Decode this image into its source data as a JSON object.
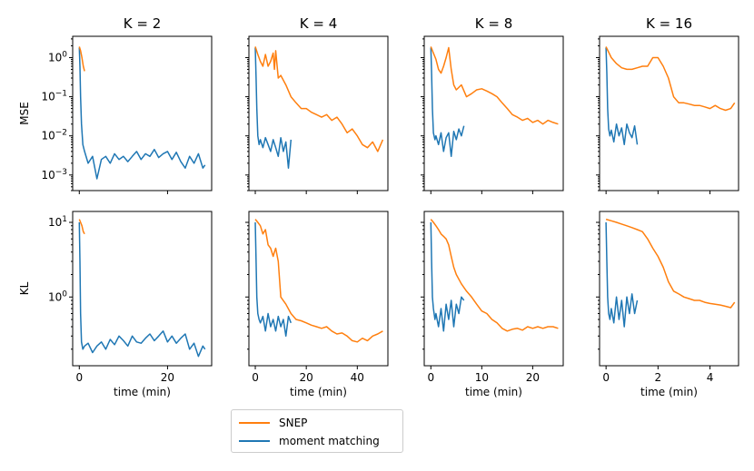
{
  "legend": {
    "snep_label": "SNEP",
    "mm_label": "moment matching",
    "snep_color": "#ff7f0e",
    "mm_color": "#1f77b4"
  },
  "chart_data": [
    {
      "type": "line",
      "title": "K = 2",
      "ylabel": "MSE",
      "xlabel": "",
      "yscale": "log",
      "ylim": [
        0.0004,
        3.5
      ],
      "xlim": [
        -1.5,
        30
      ],
      "yticks": [
        0.001,
        0.01,
        0.1,
        1
      ],
      "yticklabels": [
        "10^-3",
        "10^-2",
        "10^-1",
        "10^0"
      ],
      "xticks": [
        0,
        20
      ],
      "xticklabels": [],
      "series": [
        {
          "name": "SNEP",
          "color": "#ff7f0e",
          "x": [
            0,
            0.3,
            0.6,
            0.9,
            1.2
          ],
          "y": [
            1.9,
            1.5,
            1.0,
            0.6,
            0.45
          ]
        },
        {
          "name": "moment matching",
          "color": "#1f77b4",
          "x": [
            0,
            0.15,
            0.3,
            0.5,
            0.8,
            1.2,
            2,
            3,
            4,
            5,
            6,
            7,
            8,
            9,
            10,
            11,
            12,
            13,
            14,
            15,
            16,
            17,
            18,
            19,
            20,
            21,
            22,
            23,
            24,
            25,
            26,
            27,
            28,
            28.5
          ],
          "y": [
            1.8,
            0.6,
            0.1,
            0.02,
            0.006,
            0.004,
            0.002,
            0.003,
            0.0008,
            0.0025,
            0.003,
            0.002,
            0.0035,
            0.0025,
            0.003,
            0.0022,
            0.003,
            0.004,
            0.0025,
            0.0035,
            0.003,
            0.0045,
            0.0028,
            0.0035,
            0.004,
            0.0025,
            0.0038,
            0.0022,
            0.0015,
            0.003,
            0.002,
            0.0035,
            0.0015,
            0.0018
          ]
        }
      ]
    },
    {
      "type": "line",
      "title": "K = 4",
      "ylabel": "",
      "xlabel": "",
      "yscale": "log",
      "ylim": [
        0.0004,
        3.5
      ],
      "xlim": [
        -2.5,
        52
      ],
      "yticks": [
        0.001,
        0.01,
        0.1,
        1
      ],
      "yticklabels": [],
      "xticks": [
        0,
        20,
        40
      ],
      "xticklabels": [],
      "series": [
        {
          "name": "SNEP",
          "color": "#ff7f0e",
          "x": [
            0,
            1,
            2,
            3,
            4,
            5,
            6,
            7,
            7.5,
            8,
            9,
            10,
            12,
            14,
            16,
            18,
            20,
            22,
            24,
            26,
            28,
            30,
            32,
            34,
            36,
            38,
            40,
            42,
            44,
            46,
            48,
            50
          ],
          "y": [
            1.9,
            1.2,
            0.8,
            0.6,
            1.2,
            0.6,
            0.8,
            1.3,
            0.5,
            1.5,
            0.3,
            0.35,
            0.2,
            0.1,
            0.07,
            0.05,
            0.05,
            0.04,
            0.035,
            0.03,
            0.035,
            0.025,
            0.03,
            0.02,
            0.012,
            0.015,
            0.01,
            0.006,
            0.005,
            0.007,
            0.004,
            0.008
          ]
        },
        {
          "name": "moment matching",
          "color": "#1f77b4",
          "x": [
            0,
            0.3,
            0.6,
            1,
            1.5,
            2,
            3,
            4,
            5,
            6,
            7,
            8,
            9,
            10,
            11,
            12,
            13,
            14
          ],
          "y": [
            1.8,
            0.3,
            0.05,
            0.01,
            0.006,
            0.008,
            0.005,
            0.009,
            0.006,
            0.004,
            0.008,
            0.005,
            0.003,
            0.009,
            0.004,
            0.007,
            0.0015,
            0.008
          ]
        }
      ]
    },
    {
      "type": "line",
      "title": "K = 8",
      "ylabel": "",
      "xlabel": "",
      "yscale": "log",
      "ylim": [
        0.0004,
        3.5
      ],
      "xlim": [
        -1.3,
        26
      ],
      "yticks": [
        0.001,
        0.01,
        0.1,
        1
      ],
      "yticklabels": [],
      "xticks": [
        0,
        10,
        20
      ],
      "xticklabels": [],
      "series": [
        {
          "name": "SNEP",
          "color": "#ff7f0e",
          "x": [
            0,
            0.5,
            1,
            1.5,
            2,
            2.5,
            3,
            3.5,
            4,
            4.5,
            5,
            6,
            7,
            8,
            9,
            10,
            11,
            12,
            13,
            14,
            15,
            16,
            17,
            18,
            19,
            20,
            21,
            22,
            23,
            24,
            25
          ],
          "y": [
            1.9,
            1.3,
            0.9,
            0.5,
            0.4,
            0.6,
            1.0,
            1.8,
            0.5,
            0.2,
            0.15,
            0.2,
            0.1,
            0.12,
            0.15,
            0.16,
            0.14,
            0.12,
            0.1,
            0.07,
            0.05,
            0.035,
            0.03,
            0.025,
            0.028,
            0.022,
            0.025,
            0.02,
            0.025,
            0.022,
            0.02
          ]
        },
        {
          "name": "moment matching",
          "color": "#1f77b4",
          "x": [
            0,
            0.15,
            0.3,
            0.5,
            0.8,
            1,
            1.5,
            2,
            2.5,
            3,
            3.5,
            4,
            4.5,
            5,
            5.5,
            6,
            6.5
          ],
          "y": [
            1.8,
            0.4,
            0.05,
            0.012,
            0.008,
            0.01,
            0.006,
            0.012,
            0.004,
            0.009,
            0.012,
            0.003,
            0.013,
            0.008,
            0.015,
            0.01,
            0.018
          ]
        }
      ]
    },
    {
      "type": "line",
      "title": "K = 16",
      "ylabel": "",
      "xlabel": "",
      "yscale": "log",
      "ylim": [
        0.0004,
        3.5
      ],
      "xlim": [
        -0.25,
        5.1
      ],
      "yticks": [
        0.001,
        0.01,
        0.1,
        1
      ],
      "yticklabels": [],
      "xticks": [
        0,
        2,
        4
      ],
      "xticklabels": [],
      "series": [
        {
          "name": "SNEP",
          "color": "#ff7f0e",
          "x": [
            0,
            0.2,
            0.4,
            0.6,
            0.8,
            1.0,
            1.2,
            1.4,
            1.6,
            1.8,
            2.0,
            2.2,
            2.4,
            2.6,
            2.8,
            3.0,
            3.2,
            3.4,
            3.6,
            3.8,
            4.0,
            4.2,
            4.4,
            4.6,
            4.8,
            4.95
          ],
          "y": [
            1.9,
            1.0,
            0.7,
            0.55,
            0.5,
            0.5,
            0.55,
            0.6,
            0.6,
            1.0,
            1.0,
            0.6,
            0.3,
            0.1,
            0.07,
            0.07,
            0.065,
            0.06,
            0.06,
            0.055,
            0.05,
            0.06,
            0.05,
            0.045,
            0.05,
            0.07
          ]
        },
        {
          "name": "moment matching",
          "color": "#1f77b4",
          "x": [
            0,
            0.03,
            0.06,
            0.1,
            0.15,
            0.2,
            0.3,
            0.4,
            0.5,
            0.6,
            0.7,
            0.8,
            0.9,
            1.0,
            1.1,
            1.2
          ],
          "y": [
            1.8,
            0.4,
            0.05,
            0.015,
            0.01,
            0.014,
            0.007,
            0.02,
            0.01,
            0.016,
            0.006,
            0.02,
            0.012,
            0.009,
            0.018,
            0.006
          ]
        }
      ]
    },
    {
      "type": "line",
      "title": "",
      "ylabel": "KL",
      "xlabel": "time (min)",
      "yscale": "log",
      "ylim": [
        0.12,
        14
      ],
      "xlim": [
        -1.5,
        30
      ],
      "yticks": [
        1,
        10
      ],
      "yticklabels": [
        "10^0",
        "10^1"
      ],
      "xticks": [
        0,
        20
      ],
      "xticklabels": [
        "0",
        "20"
      ],
      "series": [
        {
          "name": "SNEP",
          "color": "#ff7f0e",
          "x": [
            0,
            0.3,
            0.6,
            0.9,
            1.2
          ],
          "y": [
            11,
            10,
            9,
            7.5,
            7
          ]
        },
        {
          "name": "moment matching",
          "color": "#1f77b4",
          "x": [
            0,
            0.15,
            0.3,
            0.5,
            0.8,
            1.2,
            2,
            3,
            4,
            5,
            6,
            7,
            8,
            9,
            10,
            11,
            12,
            13,
            14,
            15,
            16,
            17,
            18,
            19,
            20,
            21,
            22,
            23,
            24,
            25,
            26,
            27,
            28,
            28.5
          ],
          "y": [
            10,
            3,
            0.6,
            0.25,
            0.2,
            0.22,
            0.24,
            0.18,
            0.22,
            0.25,
            0.2,
            0.27,
            0.23,
            0.3,
            0.26,
            0.22,
            0.3,
            0.25,
            0.24,
            0.28,
            0.32,
            0.26,
            0.3,
            0.35,
            0.25,
            0.3,
            0.24,
            0.28,
            0.32,
            0.2,
            0.24,
            0.16,
            0.22,
            0.2
          ]
        }
      ]
    },
    {
      "type": "line",
      "title": "",
      "ylabel": "",
      "xlabel": "time (min)",
      "yscale": "log",
      "ylim": [
        0.12,
        14
      ],
      "xlim": [
        -2.5,
        52
      ],
      "yticks": [
        1,
        10
      ],
      "yticklabels": [],
      "xticks": [
        0,
        20,
        40
      ],
      "xticklabels": [
        "0",
        "20",
        "40"
      ],
      "series": [
        {
          "name": "SNEP",
          "color": "#ff7f0e",
          "x": [
            0,
            1,
            2,
            3,
            4,
            5,
            6,
            7,
            7.5,
            8,
            9,
            10,
            12,
            14,
            16,
            18,
            20,
            22,
            24,
            26,
            28,
            30,
            32,
            34,
            36,
            38,
            40,
            42,
            44,
            46,
            48,
            50
          ],
          "y": [
            11,
            10,
            9,
            7,
            8,
            5,
            4.5,
            3.5,
            4,
            4.5,
            3,
            1.0,
            0.8,
            0.6,
            0.5,
            0.48,
            0.45,
            0.42,
            0.4,
            0.38,
            0.4,
            0.35,
            0.32,
            0.33,
            0.3,
            0.26,
            0.25,
            0.28,
            0.26,
            0.3,
            0.32,
            0.35
          ]
        },
        {
          "name": "moment matching",
          "color": "#1f77b4",
          "x": [
            0,
            0.3,
            0.6,
            1,
            1.5,
            2,
            3,
            4,
            5,
            6,
            7,
            8,
            9,
            10,
            11,
            12,
            13,
            14
          ],
          "y": [
            10,
            3,
            1.0,
            0.6,
            0.5,
            0.45,
            0.55,
            0.35,
            0.6,
            0.4,
            0.5,
            0.35,
            0.55,
            0.4,
            0.5,
            0.3,
            0.55,
            0.45
          ]
        }
      ]
    },
    {
      "type": "line",
      "title": "",
      "ylabel": "",
      "xlabel": "time (min)",
      "yscale": "log",
      "ylim": [
        0.12,
        14
      ],
      "xlim": [
        -1.3,
        26
      ],
      "yticks": [
        1,
        10
      ],
      "yticklabels": [],
      "xticks": [
        0,
        10,
        20
      ],
      "xticklabels": [
        "0",
        "10",
        "20"
      ],
      "series": [
        {
          "name": "SNEP",
          "color": "#ff7f0e",
          "x": [
            0,
            0.5,
            1,
            1.5,
            2,
            2.5,
            3,
            3.5,
            4,
            4.5,
            5,
            6,
            7,
            8,
            9,
            10,
            11,
            12,
            13,
            14,
            15,
            16,
            17,
            18,
            19,
            20,
            21,
            22,
            23,
            24,
            25
          ],
          "y": [
            11,
            10,
            9,
            8,
            7,
            6.5,
            6,
            5,
            3.5,
            2.5,
            2.0,
            1.5,
            1.2,
            1.0,
            0.8,
            0.65,
            0.6,
            0.5,
            0.45,
            0.38,
            0.35,
            0.37,
            0.38,
            0.36,
            0.4,
            0.38,
            0.4,
            0.38,
            0.4,
            0.4,
            0.38
          ]
        },
        {
          "name": "moment matching",
          "color": "#1f77b4",
          "x": [
            0,
            0.15,
            0.3,
            0.5,
            0.8,
            1,
            1.5,
            2,
            2.5,
            3,
            3.5,
            4,
            4.5,
            5,
            5.5,
            6,
            6.5
          ],
          "y": [
            10,
            3,
            1.0,
            0.7,
            0.5,
            0.6,
            0.4,
            0.7,
            0.35,
            0.8,
            0.5,
            0.9,
            0.4,
            0.8,
            0.6,
            1.0,
            0.9
          ]
        }
      ]
    },
    {
      "type": "line",
      "title": "",
      "ylabel": "",
      "xlabel": "time (min)",
      "yscale": "log",
      "ylim": [
        0.12,
        14
      ],
      "xlim": [
        -0.25,
        5.1
      ],
      "yticks": [
        1,
        10
      ],
      "yticklabels": [],
      "xticks": [
        0,
        2,
        4
      ],
      "xticklabels": [
        "0",
        "2",
        "4"
      ],
      "series": [
        {
          "name": "SNEP",
          "color": "#ff7f0e",
          "x": [
            0,
            0.2,
            0.4,
            0.6,
            0.8,
            1.0,
            1.2,
            1.4,
            1.6,
            1.8,
            2.0,
            2.2,
            2.4,
            2.6,
            2.8,
            3.0,
            3.2,
            3.4,
            3.6,
            3.8,
            4.0,
            4.2,
            4.4,
            4.6,
            4.8,
            4.95
          ],
          "y": [
            11,
            10.5,
            10,
            9.5,
            9,
            8.5,
            8,
            7.5,
            6,
            4.5,
            3.5,
            2.5,
            1.6,
            1.2,
            1.1,
            1.0,
            0.95,
            0.9,
            0.9,
            0.85,
            0.82,
            0.8,
            0.78,
            0.75,
            0.72,
            0.85
          ]
        },
        {
          "name": "moment matching",
          "color": "#1f77b4",
          "x": [
            0,
            0.03,
            0.06,
            0.1,
            0.15,
            0.2,
            0.3,
            0.4,
            0.5,
            0.6,
            0.7,
            0.8,
            0.9,
            1.0,
            1.1,
            1.2
          ],
          "y": [
            10,
            3,
            1.0,
            0.6,
            0.5,
            0.7,
            0.45,
            1.0,
            0.5,
            0.9,
            0.4,
            1.0,
            0.6,
            1.1,
            0.6,
            0.9
          ]
        }
      ]
    }
  ]
}
